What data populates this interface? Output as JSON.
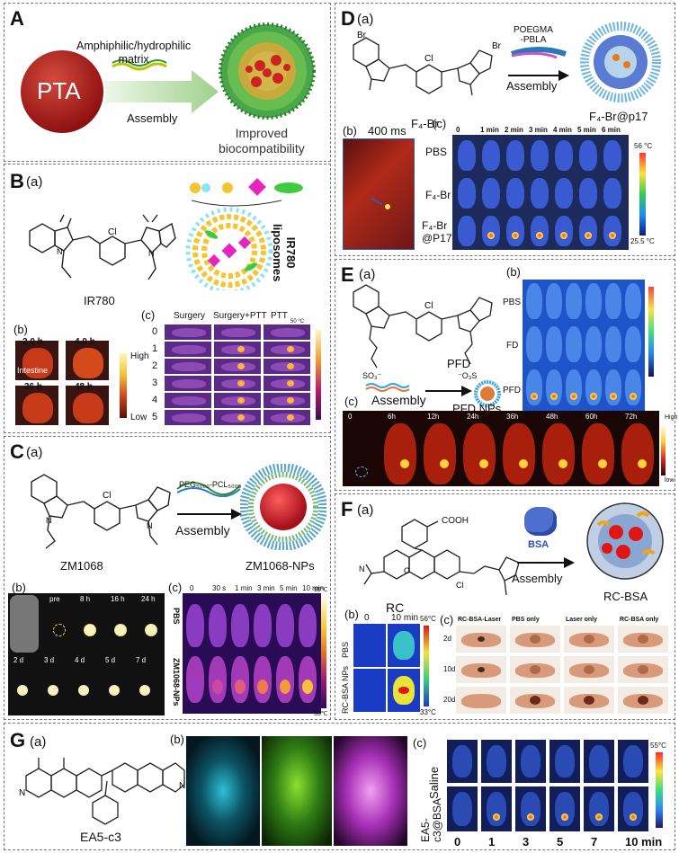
{
  "panelA": {
    "label": "A",
    "pta": "PTA",
    "matrix": "Amphiphilic/hydrophilic\nmatrix",
    "assembly": "Assembly",
    "result": "Improved\nbiocompatibility"
  },
  "panelB": {
    "label": "B",
    "sub_a": "(a)",
    "molecule": "IR780",
    "liposomes": "IR780\nliposomes",
    "sub_b": "(b)",
    "times": [
      "2.0 h",
      "4.0 h",
      "36 h",
      "48 h"
    ],
    "intestine": "Intestine",
    "high": "High",
    "low": "Low",
    "sub_c": "(c)",
    "columns": [
      "Surgery",
      "Surgery+PTT",
      "PTT"
    ],
    "rows": [
      "0",
      "1",
      "2",
      "3",
      "4",
      "5"
    ],
    "scale_top": "50 °C",
    "scale_bottom": "30 °C"
  },
  "panelC": {
    "label": "C",
    "sub_a": "(a)",
    "molecule": "ZM1068",
    "polymer": "PEG₅₀₀₀-PCL₅₀₀₀",
    "assembly": "Assembly",
    "np": "ZM1068-NPs",
    "sub_b": "(b)",
    "row1": [
      "pre",
      "8 h",
      "16 h",
      "24 h"
    ],
    "row2": [
      "2 d",
      "3 d",
      "4 d",
      "5 d",
      "7 d"
    ],
    "sub_c": "(c)",
    "times": [
      "0",
      "30 s",
      "1 min",
      "3 min",
      "5 min",
      "10 min"
    ],
    "groups": [
      "PBS",
      "ZM1068-NPs"
    ],
    "scale_top": "55℃",
    "scale_bottom": "33℃"
  },
  "panelD": {
    "label": "D",
    "sub_a": "(a)",
    "br_left": "Br",
    "br_right": "Br",
    "cl": "Cl",
    "polymer": "POEGMA\n-PBLA",
    "assembly": "Assembly",
    "molecule": "F₄-Br",
    "np": "F₄-Br@p17",
    "sub_b": "(b)",
    "exposure": "400 ms",
    "sub_c": "(c)",
    "times": [
      "0",
      "1 min",
      "2 min",
      "3 min",
      "4 min",
      "5 min",
      "6 min"
    ],
    "groups": [
      "PBS",
      "F₄-Br",
      "F₄-Br\n@P17"
    ],
    "scale_top": "56 °C",
    "scale_bottom": "25.5 °C"
  },
  "panelE": {
    "label": "E",
    "sub_a": "(a)",
    "cl": "Cl",
    "molecule": "PFD",
    "assembly": "Assembly",
    "np": "PFD NPs",
    "so3_left": "SO₃⁻",
    "so3_right": "⁻O₃S",
    "sub_b": "(b)",
    "groups": [
      "PBS",
      "FD",
      "PFD"
    ],
    "sub_c": "(c)",
    "times": [
      "0",
      "6h",
      "12h",
      "24h",
      "36h",
      "48h",
      "60h",
      "72h"
    ],
    "high": "High",
    "low": "low"
  },
  "panelF": {
    "label": "F",
    "sub_a": "(a)",
    "cooh": "COOH",
    "cl": "Cl",
    "bsa": "BSA",
    "assembly": "Assembly",
    "np": "RC-BSA",
    "sub_b": "(b)",
    "rc": "RC",
    "times": [
      "0",
      "10 min"
    ],
    "groups": [
      "PBS",
      "RC-BSA NPs"
    ],
    "scale_top": "56°C",
    "scale_bottom": "33°C",
    "sub_c": "(c)",
    "columns": [
      "RC-BSA-Laser",
      "PBS only",
      "Laser only",
      "RC-BSA  only"
    ],
    "days": [
      "2d",
      "10d",
      "20d"
    ]
  },
  "panelG": {
    "label": "G",
    "sub_a": "(a)",
    "molecule": "EA5-c3",
    "sub_b": "(b)",
    "sub_c": "(c)",
    "groups": [
      "Saline",
      "EA5-\nc3@BSA"
    ],
    "times": [
      "0",
      "1",
      "3",
      "5",
      "7",
      "10 min"
    ],
    "scale_top": "55°C"
  }
}
